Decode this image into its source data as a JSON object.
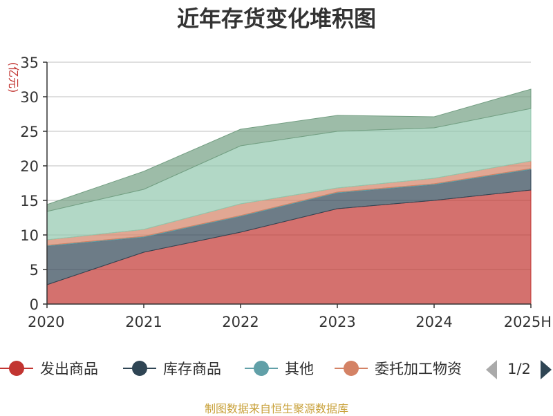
{
  "title": "近年存货变化堆积图",
  "footer": "制图数据来自恒生聚源数据库",
  "chart_data": {
    "type": "area",
    "stacked": true,
    "title": "近年存货变化堆积图",
    "unit_label": "(亿元)",
    "x": [
      "2020",
      "2021",
      "2022",
      "2023",
      "2024",
      "2025H"
    ],
    "ylim": [
      0,
      35
    ],
    "yticks": [
      0,
      5,
      10,
      15,
      20,
      25,
      30,
      35
    ],
    "grid": true,
    "series": [
      {
        "name": "发出商品",
        "color": "#c23531",
        "values": [
          2.8,
          7.5,
          10.4,
          13.8,
          15.0,
          16.5
        ]
      },
      {
        "name": "库存商品",
        "color": "#2f4554",
        "values": [
          5.6,
          2.2,
          2.3,
          2.3,
          2.3,
          3.0
        ]
      },
      {
        "name": "其他",
        "color": "#61a0a8",
        "values": [
          0.1,
          0.1,
          0.1,
          0.1,
          0.1,
          0.1
        ]
      },
      {
        "name": "委托加工物资",
        "color": "#d48265",
        "values": [
          0.8,
          1.0,
          1.7,
          0.6,
          0.8,
          1.1
        ]
      },
      {
        "name": "",
        "color": "#91c7ae",
        "values": [
          4.1,
          5.8,
          8.4,
          8.2,
          7.3,
          7.6
        ]
      },
      {
        "name": "",
        "color": "#749f83",
        "values": [
          1.0,
          2.6,
          2.4,
          2.3,
          1.6,
          2.8
        ]
      }
    ],
    "legend": {
      "position": "bottom",
      "visible_items": [
        "发出商品",
        "库存商品",
        "其他",
        "委托加工物资"
      ],
      "page": "1/2"
    }
  }
}
